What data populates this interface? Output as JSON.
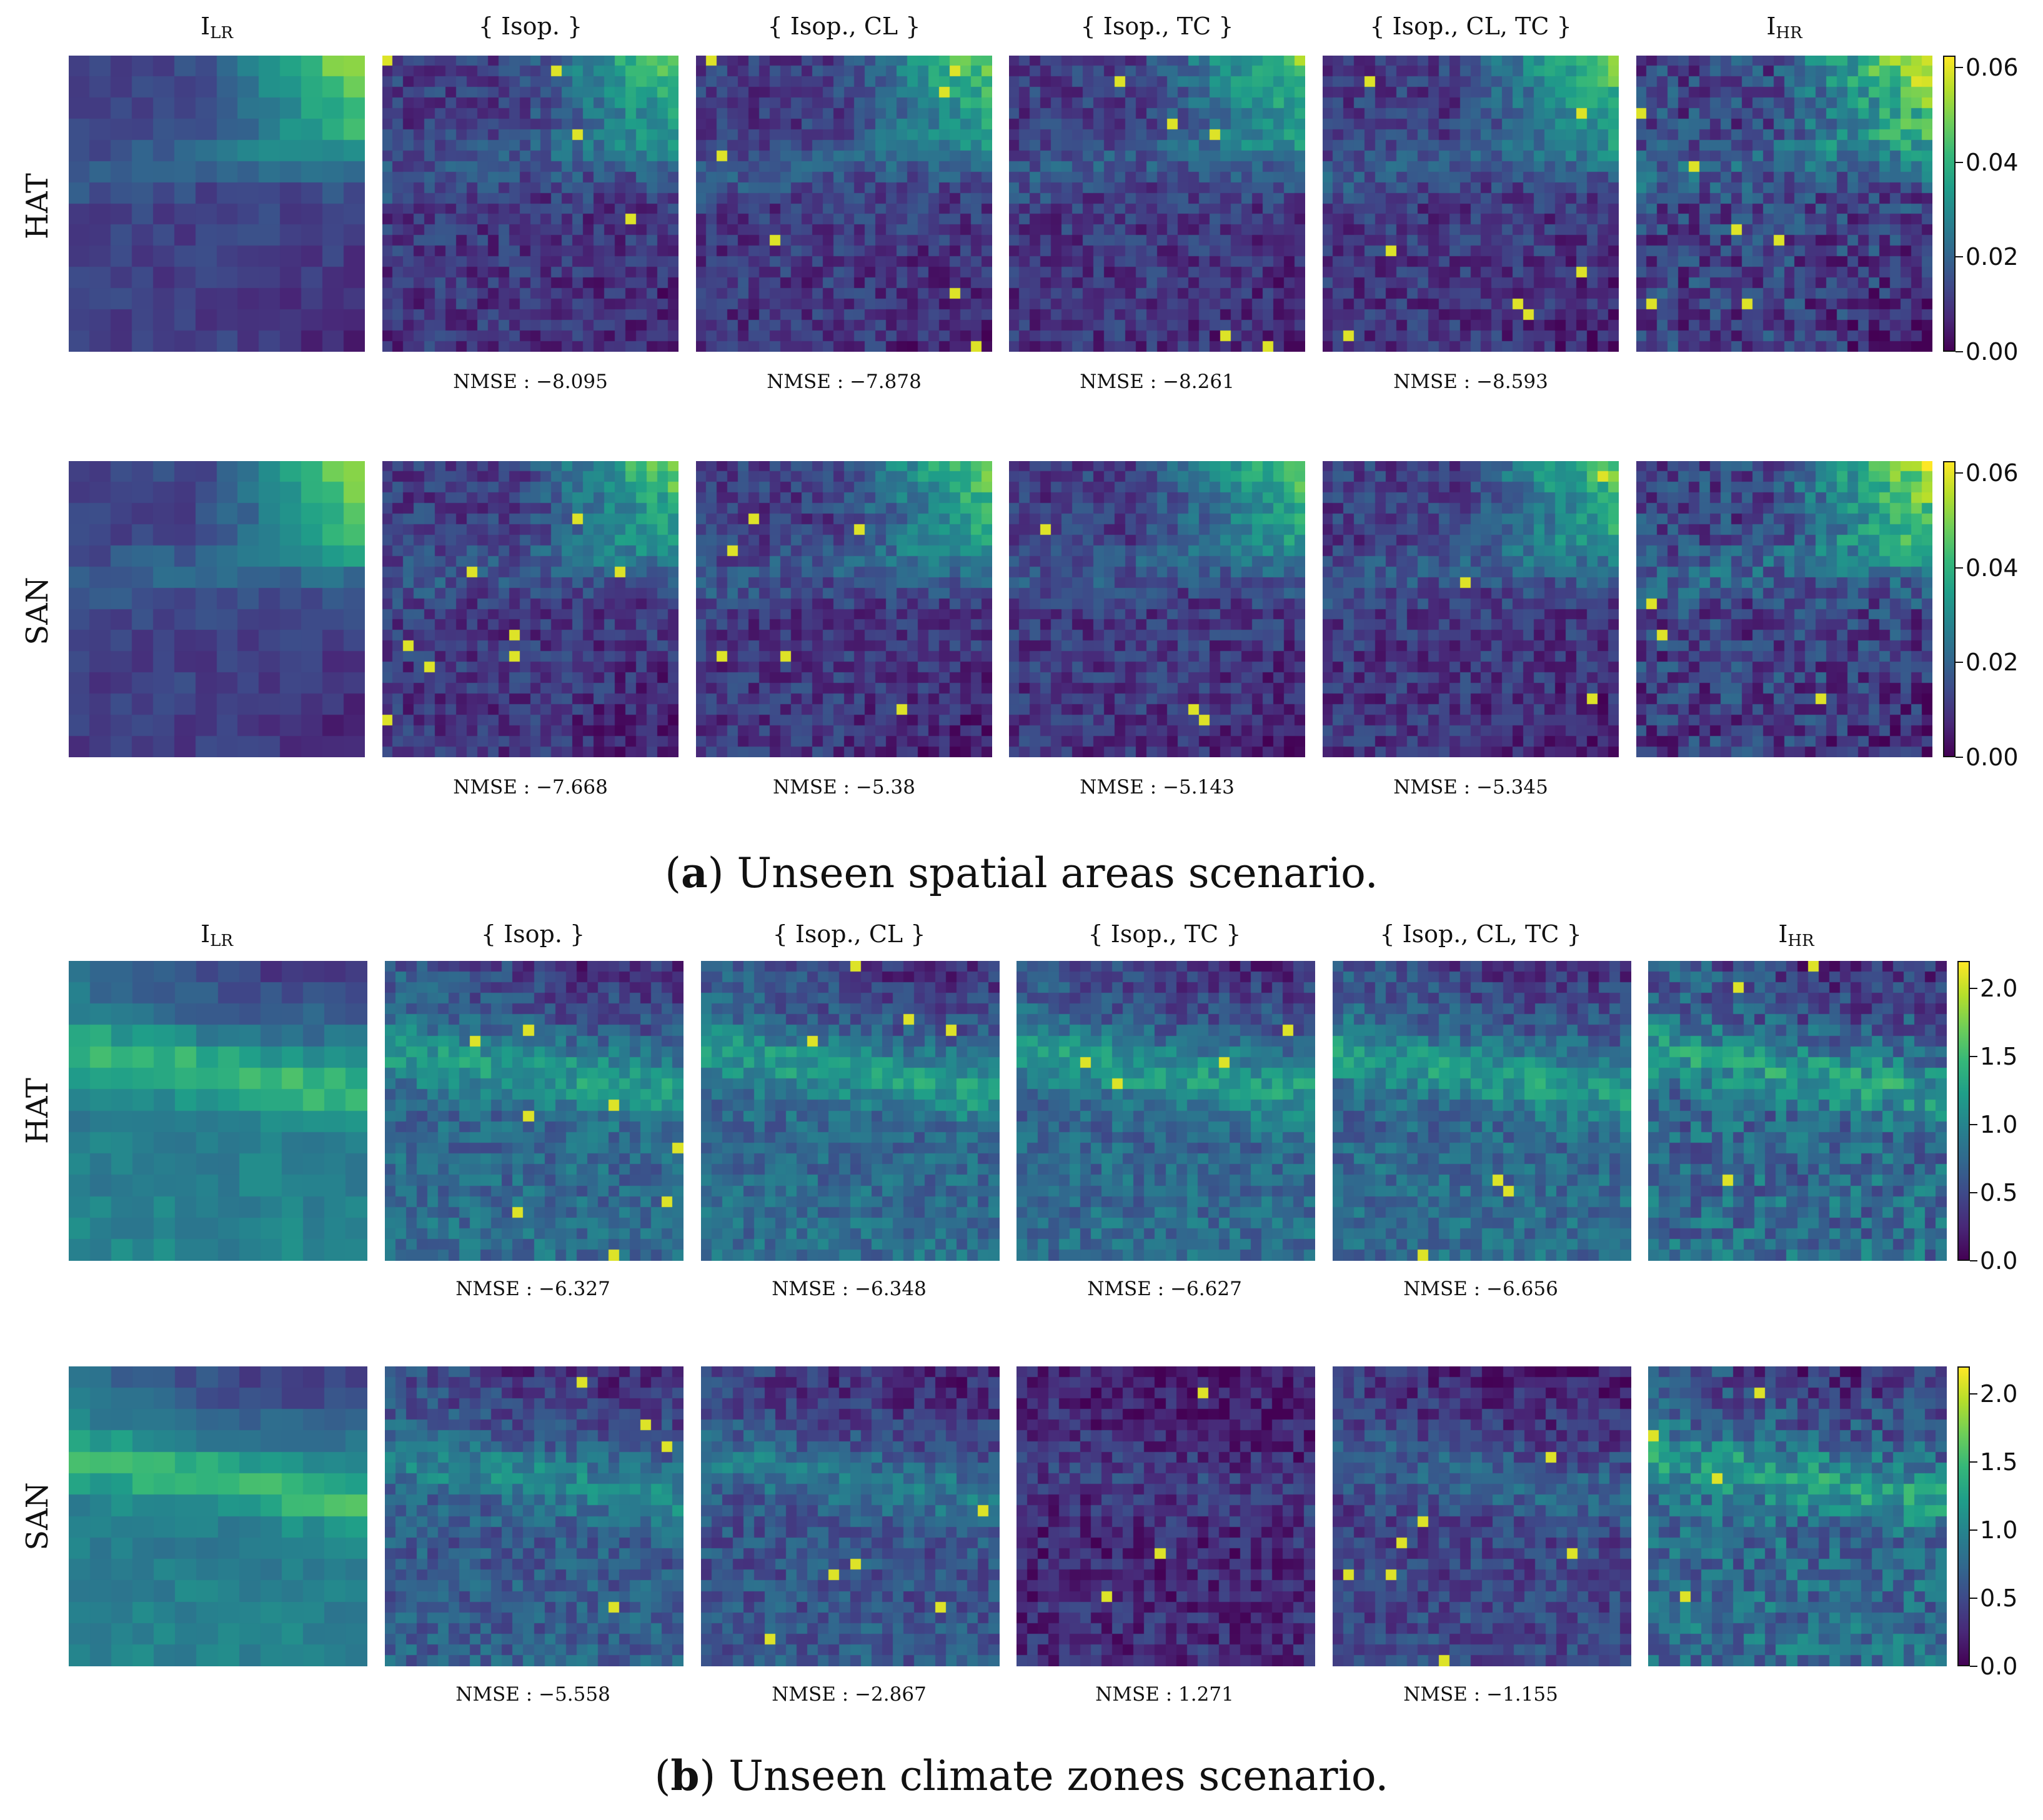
{
  "colormap": [
    "#440154",
    "#482878",
    "#3e4989",
    "#31688e",
    "#26828e",
    "#1f9e89",
    "#35b779",
    "#6ece58",
    "#b5de2b",
    "#fde725"
  ],
  "panels": [
    {
      "id": "a",
      "caption_letter": "a",
      "caption_text": "Unseen spatial areas scenario.",
      "columns": [
        {
          "label": "I",
          "sub": "LR"
        },
        {
          "label": "{ Isop. }",
          "sub": ""
        },
        {
          "label": "{ Isop., CL }",
          "sub": ""
        },
        {
          "label": "{ Isop., TC }",
          "sub": ""
        },
        {
          "label": "{ Isop., CL, TC }",
          "sub": ""
        },
        {
          "label": "I",
          "sub": "HR"
        }
      ],
      "rows": [
        {
          "label": "HAT",
          "nmse": [
            "NMSE : −8.095",
            "NMSE : −7.878",
            "NMSE : −8.261",
            "NMSE : −8.593"
          ]
        },
        {
          "label": "SAN",
          "nmse": [
            "NMSE : −7.668",
            "NMSE : −5.38",
            "NMSE : −5.143",
            "NMSE : −5.345"
          ]
        }
      ],
      "colorbar": {
        "min": 0.0,
        "max": 0.0625,
        "ticks": [
          "0.00",
          "0.02",
          "0.04",
          "0.06"
        ],
        "tick_values": [
          0.0,
          0.02,
          0.04,
          0.06
        ]
      }
    },
    {
      "id": "b",
      "caption_letter": "b",
      "caption_text": "Unseen climate zones scenario.",
      "columns": [
        {
          "label": "I",
          "sub": "LR"
        },
        {
          "label": "{ Isop. }",
          "sub": ""
        },
        {
          "label": "{ Isop., CL }",
          "sub": ""
        },
        {
          "label": "{ Isop., TC }",
          "sub": ""
        },
        {
          "label": "{ Isop., CL, TC }",
          "sub": ""
        },
        {
          "label": "I",
          "sub": "HR"
        }
      ],
      "rows": [
        {
          "label": "HAT",
          "nmse": [
            "NMSE : −6.327",
            "NMSE : −6.348",
            "NMSE : −6.627",
            "NMSE : −6.656"
          ]
        },
        {
          "label": "SAN",
          "nmse": [
            "NMSE : −5.558",
            "NMSE : −2.867",
            "NMSE : 1.271",
            "NMSE : −1.155"
          ]
        }
      ],
      "colorbar": {
        "min": 0.0,
        "max": 2.2,
        "ticks": [
          "0.0",
          "0.5",
          "1.0",
          "1.5",
          "2.0"
        ],
        "tick_values": [
          0.0,
          0.5,
          1.0,
          1.5,
          2.0
        ]
      }
    }
  ],
  "chart_data": {
    "type": "heatmap",
    "description_labels": {
      "scenario_a": "(a) Unseen spatial areas scenario.",
      "scenario_b": "(b) Unseen climate zones scenario."
    },
    "columns": [
      "I_LR",
      "{ Isop. }",
      "{ Isop., CL }",
      "{ Isop., TC }",
      "{ Isop., CL, TC }",
      "I_HR"
    ],
    "rows": [
      "HAT",
      "SAN"
    ],
    "nmse": {
      "a": {
        "HAT": [
          -8.095,
          -7.878,
          -8.261,
          -8.593
        ],
        "SAN": [
          -7.668,
          -5.38,
          -5.143,
          -5.345
        ]
      },
      "b": {
        "HAT": [
          -6.327,
          -6.348,
          -6.627,
          -6.656
        ],
        "SAN": [
          -5.558,
          -2.867,
          1.271,
          -1.155
        ]
      }
    },
    "colorbar_range": {
      "a": [
        0.0,
        0.0625
      ],
      "b": [
        0.0,
        2.2
      ]
    },
    "grid_size": {
      "low_res": 14,
      "high_res": 28
    }
  }
}
